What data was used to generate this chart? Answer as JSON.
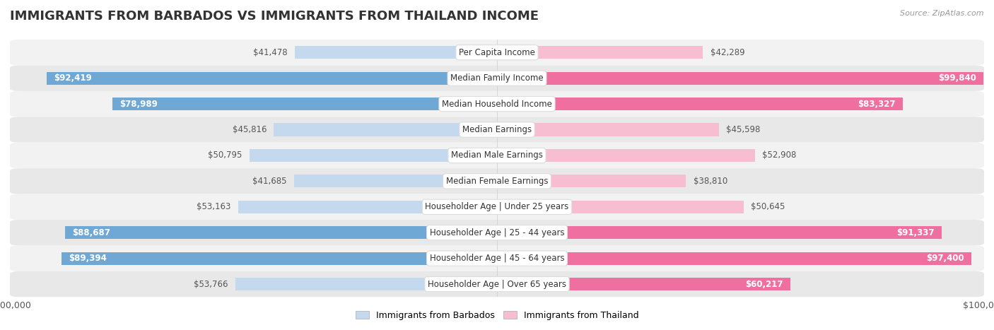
{
  "title": "IMMIGRANTS FROM BARBADOS VS IMMIGRANTS FROM THAILAND INCOME",
  "source": "Source: ZipAtlas.com",
  "categories": [
    "Per Capita Income",
    "Median Family Income",
    "Median Household Income",
    "Median Earnings",
    "Median Male Earnings",
    "Median Female Earnings",
    "Householder Age | Under 25 years",
    "Householder Age | 25 - 44 years",
    "Householder Age | 45 - 64 years",
    "Householder Age | Over 65 years"
  ],
  "barbados_values": [
    41478,
    92419,
    78989,
    45816,
    50795,
    41685,
    53163,
    88687,
    89394,
    53766
  ],
  "thailand_values": [
    42289,
    99840,
    83327,
    45598,
    52908,
    38810,
    50645,
    91337,
    97400,
    60217
  ],
  "barbados_color_light": "#c5d9ee",
  "barbados_color_dark": "#6fa8d5",
  "thailand_color_light": "#f7bdd0",
  "thailand_color_dark": "#ef6fa0",
  "max_value": 100000,
  "legend_barbados_label": "Immigrants from Barbados",
  "legend_thailand_label": "Immigrants from Thailand",
  "background_color": "#ffffff",
  "row_bg_even": "#f2f2f2",
  "row_bg_odd": "#e8e8e8",
  "text_inside_color": "#ffffff",
  "text_outside_color": "#555555",
  "threshold": 60000,
  "title_fontsize": 13,
  "label_fontsize": 8.5,
  "source_fontsize": 8
}
